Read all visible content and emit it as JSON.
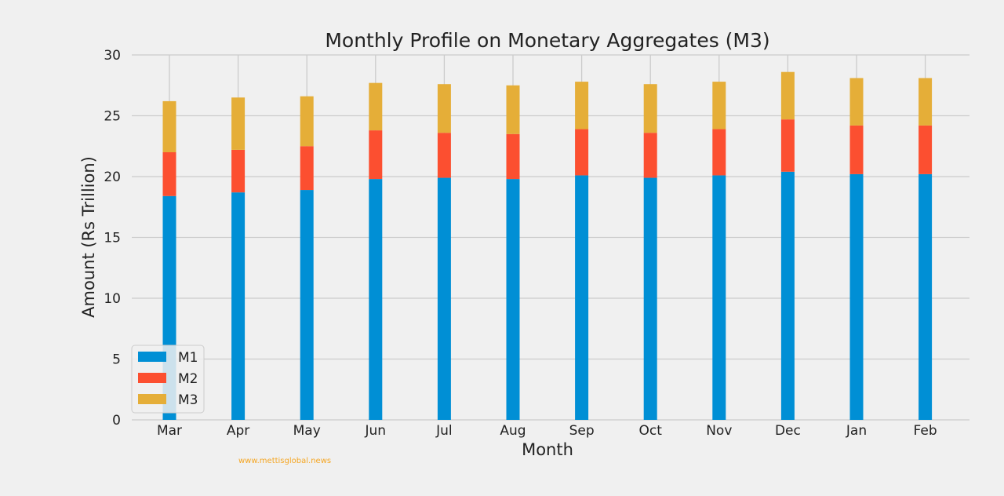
{
  "chart_data": {
    "type": "bar",
    "stacked": true,
    "title": "Monthly Profile on Monetary Aggregates (M3)",
    "xlabel": "Month",
    "ylabel": "Amount (Rs Trillion)",
    "ylim": [
      0,
      30
    ],
    "yticks": [
      "0",
      "5",
      "10",
      "15",
      "20",
      "25",
      "30"
    ],
    "grid": true,
    "legend_position": "bottom-left",
    "categories": [
      "Mar",
      "Apr",
      "May",
      "Jun",
      "Jul",
      "Aug",
      "Sep",
      "Oct",
      "Nov",
      "Dec",
      "Jan",
      "Feb"
    ],
    "series": [
      {
        "name": "M1",
        "color": "#008fd5",
        "values": [
          18.4,
          18.7,
          18.9,
          19.8,
          19.9,
          19.8,
          20.1,
          19.9,
          20.1,
          20.4,
          20.2,
          20.2
        ]
      },
      {
        "name": "M2",
        "color": "#fc4f30",
        "values": [
          3.6,
          3.5,
          3.6,
          4.0,
          3.7,
          3.7,
          3.8,
          3.7,
          3.8,
          4.3,
          4.0,
          4.0
        ]
      },
      {
        "name": "M3",
        "color": "#e5ae38",
        "values": [
          4.2,
          4.3,
          4.1,
          3.9,
          4.0,
          4.0,
          3.9,
          4.0,
          3.9,
          3.9,
          3.9,
          3.9
        ]
      }
    ]
  },
  "watermark": {
    "text": "www.mettisglobal.news",
    "color": "#f5a623"
  }
}
